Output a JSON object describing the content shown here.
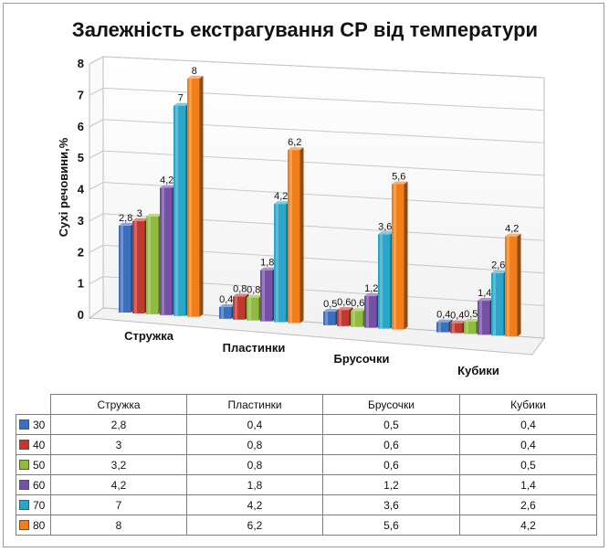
{
  "chart_data": {
    "type": "bar",
    "title": "Залежність екстрагування СР від температури",
    "xlabel": "",
    "ylabel": "Сухі речовини,%",
    "ylim": [
      0,
      8
    ],
    "yticks": [
      "0",
      "1",
      "2",
      "3",
      "4",
      "5",
      "6",
      "7",
      "8"
    ],
    "categories": [
      "Стружка",
      "Пластинки",
      "Брусочки",
      "Кубики"
    ],
    "series": [
      {
        "name": "30",
        "color": "#3c6fc0",
        "values": [
          2.8,
          0.4,
          0.5,
          0.4
        ],
        "labels": [
          "2,8",
          "0,4",
          "0,5",
          "0,4"
        ],
        "table": [
          "2,8",
          "0,4",
          "0,5",
          "0,4"
        ]
      },
      {
        "name": "40",
        "color": "#c0392f",
        "values": [
          3,
          0.8,
          0.6,
          0.4
        ],
        "labels": [
          "3",
          "0,8",
          "0,6",
          "0,4"
        ],
        "table": [
          "3",
          "0,8",
          "0,6",
          "0,4"
        ]
      },
      {
        "name": "50",
        "color": "#8fbb3e",
        "values": [
          3.2,
          0.8,
          0.6,
          0.5
        ],
        "labels": [
          "",
          "0,8",
          "0,6",
          "0,5"
        ],
        "table": [
          "3,2",
          "0,8",
          "0,6",
          "0,5"
        ]
      },
      {
        "name": "60",
        "color": "#7451a5",
        "values": [
          4.2,
          1.8,
          1.2,
          1.4
        ],
        "labels": [
          "4,2",
          "1,8",
          "1,2",
          "1,4"
        ],
        "table": [
          "4,2",
          "1,8",
          "1,2",
          "1,4"
        ]
      },
      {
        "name": "70",
        "color": "#2aa6c9",
        "values": [
          7,
          4.2,
          3.6,
          2.6
        ],
        "labels": [
          "7",
          "4,2",
          "3,6",
          "2,6"
        ],
        "table": [
          "7",
          "4,2",
          "3,6",
          "2,6"
        ]
      },
      {
        "name": "80",
        "color": "#f07f1b",
        "values": [
          8,
          6.2,
          5.6,
          4.2
        ],
        "labels": [
          "8",
          "6,2",
          "5,6",
          "4,2"
        ],
        "table": [
          "8",
          "6,2",
          "5,6",
          "4,2"
        ]
      }
    ],
    "legend": "table-below"
  }
}
